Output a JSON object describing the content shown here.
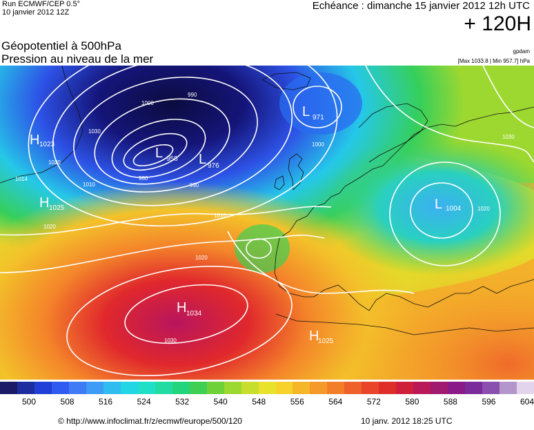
{
  "header": {
    "run": "Run ECMWF/CEP 0.5°",
    "date": "10 janvier 2012 12Z",
    "echeance": "Echéance : dimanche 15 janvier 2012 12h UTC",
    "horizon": "+ 120H",
    "title_line1": "Géopotentiel à 500hPa",
    "title_line2": "Pression au niveau de la mer",
    "source": "gpdam",
    "max_min": "[Max 1033.8 | Min 957.7] hPa"
  },
  "pressure_centers": [
    {
      "type": "L",
      "value": "958"
    },
    {
      "type": "L",
      "value": "971"
    },
    {
      "type": "L",
      "value": "976"
    },
    {
      "type": "L",
      "value": "1004"
    },
    {
      "type": "H",
      "value": "1023"
    },
    {
      "type": "H",
      "value": "1025"
    },
    {
      "type": "H",
      "value": "1034"
    },
    {
      "type": "H",
      "value": "1025"
    }
  ],
  "isobar_labels": [
    "990",
    "1000",
    "1010",
    "1020",
    "1030",
    "980",
    "990",
    "1000",
    "1010",
    "1020",
    "1030",
    "1014",
    "1020",
    "1030",
    "1020"
  ],
  "color_scale": {
    "colors": [
      "#1a1a66",
      "#1d2c9e",
      "#1f3fd6",
      "#2f5bf0",
      "#3f7bf5",
      "#3f9cf6",
      "#30bcf0",
      "#22d6e6",
      "#1fe0c7",
      "#20dca2",
      "#22d57c",
      "#3fcf52",
      "#6fd138",
      "#9dd830",
      "#c8de2c",
      "#e8e32a",
      "#f6d22a",
      "#f6b62a",
      "#f59a2a",
      "#f27e2a",
      "#ef612a",
      "#e8452a",
      "#df2d2a",
      "#d01f3a",
      "#b91a57",
      "#a01a70",
      "#8a1a88",
      "#7a2a9a",
      "#8a50b0",
      "#b496cc",
      "#e2d4ec"
    ],
    "tick_labels": [
      "500",
      "508",
      "516",
      "524",
      "532",
      "540",
      "548",
      "556",
      "564",
      "572",
      "580",
      "588",
      "596",
      "604"
    ]
  },
  "footer": {
    "url": "© http://www.infoclimat.fr/z/ecmwf/europe/500/120",
    "generated": "10 janv. 2012 18:25 UTC"
  }
}
